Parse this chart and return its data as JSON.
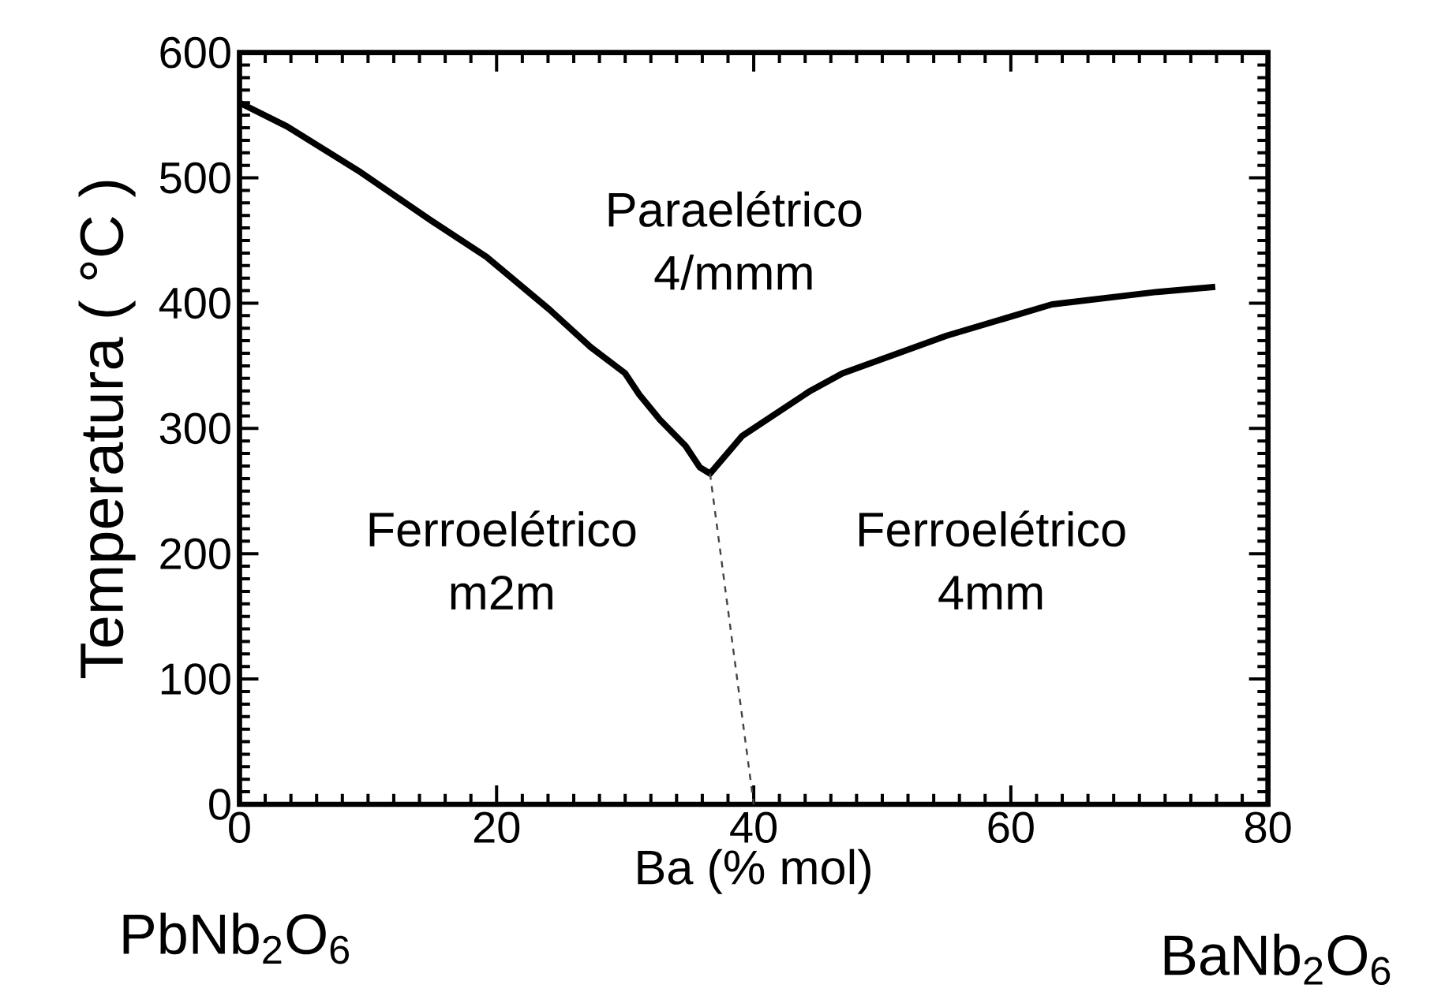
{
  "chart_data": {
    "type": "line",
    "xlabel": "Ba (% mol)",
    "ylabel": "Temperatura ( °C )",
    "xlim": [
      0,
      80
    ],
    "ylim": [
      0,
      600
    ],
    "xticks": [
      0,
      20,
      40,
      60,
      80
    ],
    "yticks": [
      0,
      100,
      200,
      300,
      400,
      500,
      600
    ],
    "grid": false,
    "marker": "none",
    "series": [
      {
        "color": "#000000",
        "line_style": "solid",
        "x": [
          0,
          3.7,
          9.2,
          14.9,
          19.2,
          24.1,
          27.3,
          30.0,
          31.1,
          32.7,
          34.7,
          35.8,
          36.6,
          39.1,
          44.4,
          46.9,
          55.0,
          63.2,
          71.4,
          75.9
        ],
        "values": [
          560,
          541,
          506,
          466,
          437,
          395,
          365,
          344,
          327,
          307,
          286,
          269,
          264,
          294,
          330,
          344,
          374,
          399,
          409,
          413
        ]
      },
      {
        "color": "#444444",
        "line_style": "dashed",
        "x": [
          36.6,
          40
        ],
        "values": [
          264,
          0
        ]
      }
    ],
    "annotations": [
      "Paraelétrico 4/mmm",
      "Ferroelétrico m2m",
      "Ferroelétrico 4mm",
      "PbNb$_{2}$O$_{6}$",
      "BaNb$_{2}$O$_{6}$"
    ]
  }
}
